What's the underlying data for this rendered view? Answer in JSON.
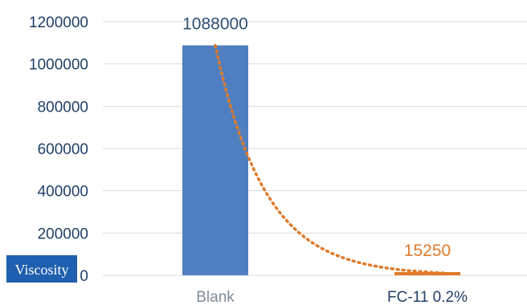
{
  "chart_data": {
    "type": "bar",
    "categories": [
      "Blank",
      "FC-11 0.2%"
    ],
    "values": [
      1088000,
      15250
    ],
    "data_labels": [
      "1088000",
      "15250"
    ],
    "ylabel": "Viscosity",
    "ylim": [
      0,
      1200000
    ],
    "yticks": [
      0,
      200000,
      400000,
      600000,
      800000,
      1000000,
      1200000
    ],
    "ytick_labels": [
      "0",
      "200000",
      "400000",
      "600000",
      "800000",
      "1000000",
      "1200000"
    ],
    "grid": true,
    "trendline": {
      "style": "dotted",
      "kind": "exponential"
    },
    "colors": {
      "bar_blank": "#4f7fc0",
      "bar_fc11": "#e07a2b",
      "label_blank": "#2f4f77",
      "label_fc11": "#e07a2b",
      "category_blank": "#7f8c9a",
      "category_fc11": "#1f3f66",
      "trendline": "#e07a2b",
      "ylabel_bg": "#1f5fb0",
      "ylabel_text": "#ffffff"
    }
  }
}
